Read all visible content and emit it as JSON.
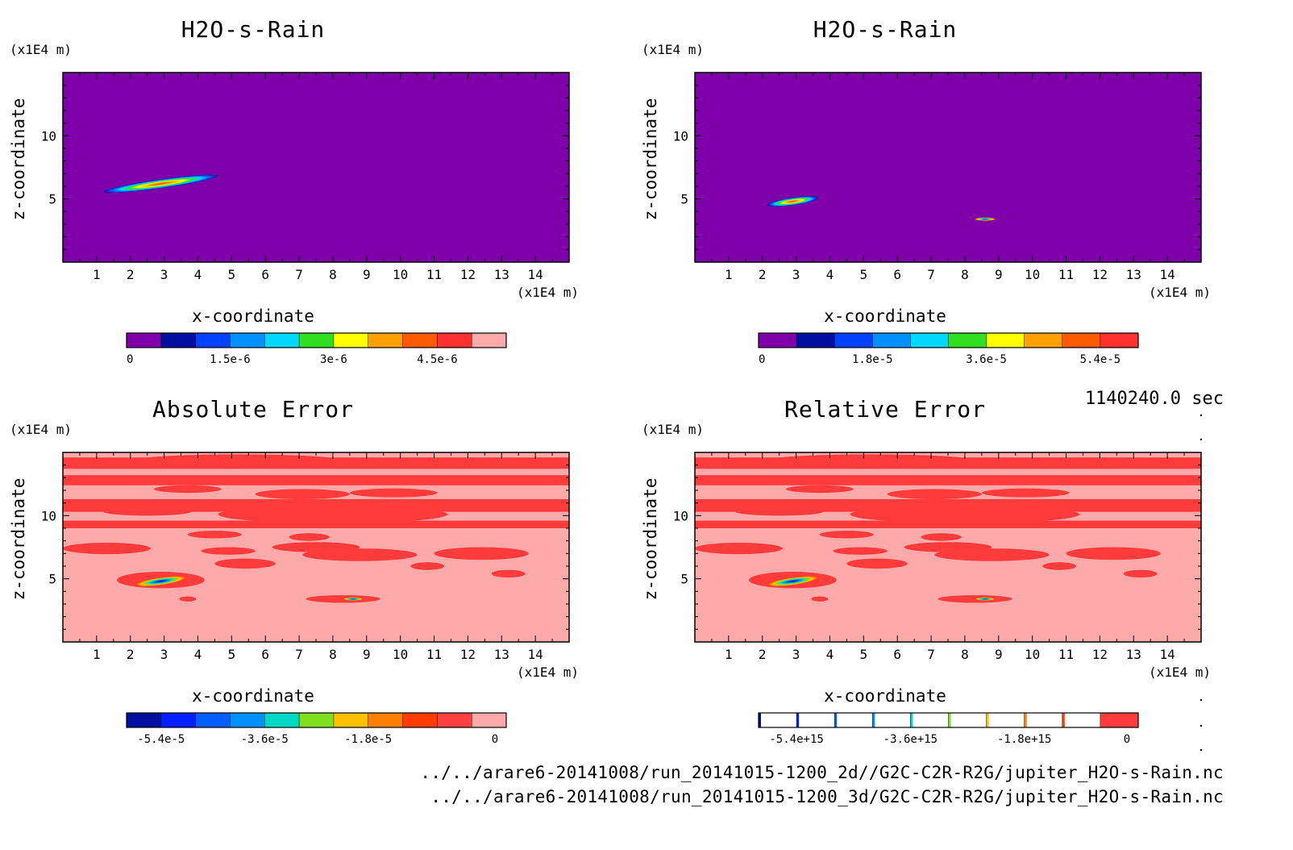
{
  "panels": [
    {
      "id": "p1",
      "title": "H2O-s-Rain",
      "unit_z": "(x1E4 m)",
      "unit_x": "(x1E4 m)",
      "xlabel": "x-coordinate",
      "ylabel": "z-coordinate"
    },
    {
      "id": "p2",
      "title": "H2O-s-Rain",
      "unit_z": "(x1E4 m)",
      "unit_x": "(x1E4 m)",
      "xlabel": "x-coordinate",
      "ylabel": "z-coordinate"
    },
    {
      "id": "p3",
      "title": "Absolute Error",
      "unit_z": "(x1E4 m)",
      "unit_x": "(x1E4 m)",
      "xlabel": "x-coordinate",
      "ylabel": "z-coordinate"
    },
    {
      "id": "p4",
      "title": "Relative Error",
      "unit_z": "(x1E4 m)",
      "unit_x": "(x1E4 m)",
      "xlabel": "x-coordinate",
      "ylabel": "z-coordinate"
    }
  ],
  "time_label": "1140240.0 sec",
  "footer": {
    "file_2d": "../../arare6-20141008/run_20141015-1200_2d//G2C-C2R-R2G/jupiter_H2O-s-Rain.nc",
    "file_3d": "../../arare6-20141008/run_20141015-1200_3d/G2C-C2R-R2G/jupiter_H2O-s-Rain.nc"
  },
  "colors": {
    "purple": "#7f00aa",
    "red": "#ff3b3b",
    "pink": "#ffaaaa"
  },
  "chart_data": [
    {
      "type": "heatmap",
      "panel": "p1",
      "title": "H2O-s-Rain",
      "xlabel": "x-coordinate",
      "ylabel": "z-coordinate",
      "units": "(x1E4 m)",
      "xlim": [
        0,
        15
      ],
      "ylim": [
        0,
        15
      ],
      "x_ticks": [
        1,
        2,
        3,
        4,
        5,
        6,
        7,
        8,
        9,
        10,
        11,
        12,
        13,
        14
      ],
      "y_ticks": [
        5,
        10
      ],
      "colorbar": {
        "ticks": [
          "0",
          "1.5e-6",
          "3e-6",
          "4.5e-6"
        ],
        "colors": [
          "#7f00aa",
          "#000fa0",
          "#0040ff",
          "#0090ff",
          "#00d8ff",
          "#30e020",
          "#ffff00",
          "#ffa000",
          "#ff5a00",
          "#ff3030",
          "#ffaaaa"
        ]
      },
      "features": [
        {
          "shape": "elongated blob",
          "x_center": 2.9,
          "z_center": 6.2,
          "peak": "high"
        }
      ]
    },
    {
      "type": "heatmap",
      "panel": "p2",
      "title": "H2O-s-Rain",
      "xlabel": "x-coordinate",
      "ylabel": "z-coordinate",
      "units": "(x1E4 m)",
      "xlim": [
        0,
        15
      ],
      "ylim": [
        0,
        15
      ],
      "x_ticks": [
        1,
        2,
        3,
        4,
        5,
        6,
        7,
        8,
        9,
        10,
        11,
        12,
        13,
        14
      ],
      "y_ticks": [
        5,
        10
      ],
      "colorbar": {
        "ticks": [
          "0",
          "1.8e-5",
          "3.6e-5",
          "5.4e-5"
        ],
        "colors": [
          "#7f00aa",
          "#000fa0",
          "#0040ff",
          "#0090ff",
          "#00d8ff",
          "#30e020",
          "#ffff00",
          "#ffa000",
          "#ff5a00",
          "#ff3030"
        ]
      },
      "features": [
        {
          "shape": "blob",
          "x_center": 2.9,
          "z_center": 4.8,
          "peak": "high"
        },
        {
          "shape": "small blob",
          "x_center": 8.6,
          "z_center": 3.4,
          "peak": "low"
        }
      ]
    },
    {
      "type": "heatmap",
      "panel": "p3",
      "title": "Absolute Error",
      "xlabel": "x-coordinate",
      "ylabel": "z-coordinate",
      "units": "(x1E4 m)",
      "xlim": [
        0,
        15
      ],
      "ylim": [
        0,
        15
      ],
      "x_ticks": [
        1,
        2,
        3,
        4,
        5,
        6,
        7,
        8,
        9,
        10,
        11,
        12,
        13,
        14
      ],
      "y_ticks": [
        5,
        10
      ],
      "colorbar": {
        "ticks": [
          "-5.4e-5",
          "-3.6e-5",
          "-1.8e-5",
          "0"
        ],
        "colors": [
          "#000fa0",
          "#0020ff",
          "#0060ff",
          "#0090ff",
          "#00d8c8",
          "#80e020",
          "#ffc000",
          "#ff8000",
          "#ff3c00",
          "#ff4040",
          "#ffaaaa"
        ]
      },
      "features": [
        {
          "shape": "blob",
          "x_center": 2.9,
          "z_center": 4.8,
          "peak": "low"
        },
        {
          "shape": "small blob",
          "x_center": 8.6,
          "z_center": 3.4,
          "peak": "low"
        }
      ]
    },
    {
      "type": "heatmap",
      "panel": "p4",
      "title": "Relative Error",
      "xlabel": "x-coordinate",
      "ylabel": "z-coordinate",
      "units": "(x1E4 m)",
      "xlim": [
        0,
        15
      ],
      "ylim": [
        0,
        15
      ],
      "x_ticks": [
        1,
        2,
        3,
        4,
        5,
        6,
        7,
        8,
        9,
        10,
        11,
        12,
        13,
        14
      ],
      "y_ticks": [
        5,
        10
      ],
      "colorbar": {
        "ticks": [
          "-5.4e+15",
          "-3.6e+15",
          "-1.8e+15",
          "0"
        ],
        "colors": [
          "#000fa0",
          "#0020ff",
          "#0060ff",
          "#0090ff",
          "#00d8c8",
          "#80e020",
          "#ffc000",
          "#ff8000",
          "#ff3c00",
          "#ff3b3b"
        ]
      },
      "features": [
        {
          "shape": "blob",
          "x_center": 2.9,
          "z_center": 4.8,
          "peak": "low"
        },
        {
          "shape": "small blob",
          "x_center": 8.6,
          "z_center": 3.4,
          "peak": "low"
        }
      ]
    }
  ]
}
